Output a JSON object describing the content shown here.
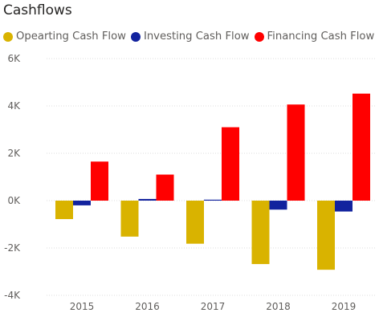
{
  "title": "Cashflows",
  "legend": [
    {
      "label": "Opearting Cash Flow",
      "color": "#d9b300"
    },
    {
      "label": "Investing Cash Flow",
      "color": "#12239e"
    },
    {
      "label": "Financing Cash Flow",
      "color": "#ff0000"
    }
  ],
  "chart_data": {
    "type": "bar",
    "title": "Cashflows",
    "xlabel": "",
    "ylabel": "",
    "categories": [
      "2015",
      "2016",
      "2017",
      "2018",
      "2019"
    ],
    "series": [
      {
        "name": "Opearting Cash Flow",
        "color": "#d9b300",
        "values": [
          -780,
          -1520,
          -1820,
          -2680,
          -2920
        ]
      },
      {
        "name": "Investing Cash Flow",
        "color": "#12239e",
        "values": [
          -200,
          70,
          40,
          -380,
          -460
        ]
      },
      {
        "name": "Financing Cash Flow",
        "color": "#ff0000",
        "values": [
          1650,
          1100,
          3100,
          4060,
          4520
        ]
      }
    ],
    "ylim": [
      -4000,
      6000
    ],
    "yticks": [
      -4000,
      -2000,
      0,
      2000,
      4000,
      6000
    ],
    "ytick_labels": [
      "-4K",
      "-2K",
      "0K",
      "2K",
      "4K",
      "6K"
    ],
    "grid": true,
    "legend_position": "top-left"
  }
}
